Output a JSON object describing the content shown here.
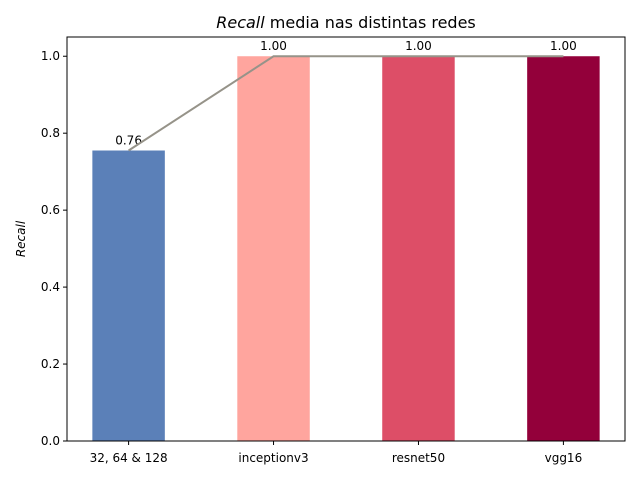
{
  "chart_data": {
    "type": "bar",
    "title_italic": "Recall",
    "title_rest": " media nas distintas redes",
    "ylabel": "Recall",
    "xlabel": "",
    "categories": [
      "32, 64 & 128",
      "inceptionv3",
      "resnet50",
      "vgg16"
    ],
    "values": [
      0.755,
      1.0,
      1.0,
      1.0
    ],
    "value_labels": [
      "0.76",
      "1.00",
      "1.00",
      "1.00"
    ],
    "bar_colors": [
      "#5b80b8",
      "#ffa59e",
      "#dd4e67",
      "#93003a"
    ],
    "line_overlay_color": "#969389",
    "ylim": [
      0,
      1.05
    ],
    "yticks": [
      0.0,
      0.2,
      0.4,
      0.6,
      0.8,
      1.0
    ],
    "ytick_labels": [
      "0.0",
      "0.2",
      "0.4",
      "0.6",
      "0.8",
      "1.0"
    ],
    "grid": false,
    "legend": "none"
  }
}
